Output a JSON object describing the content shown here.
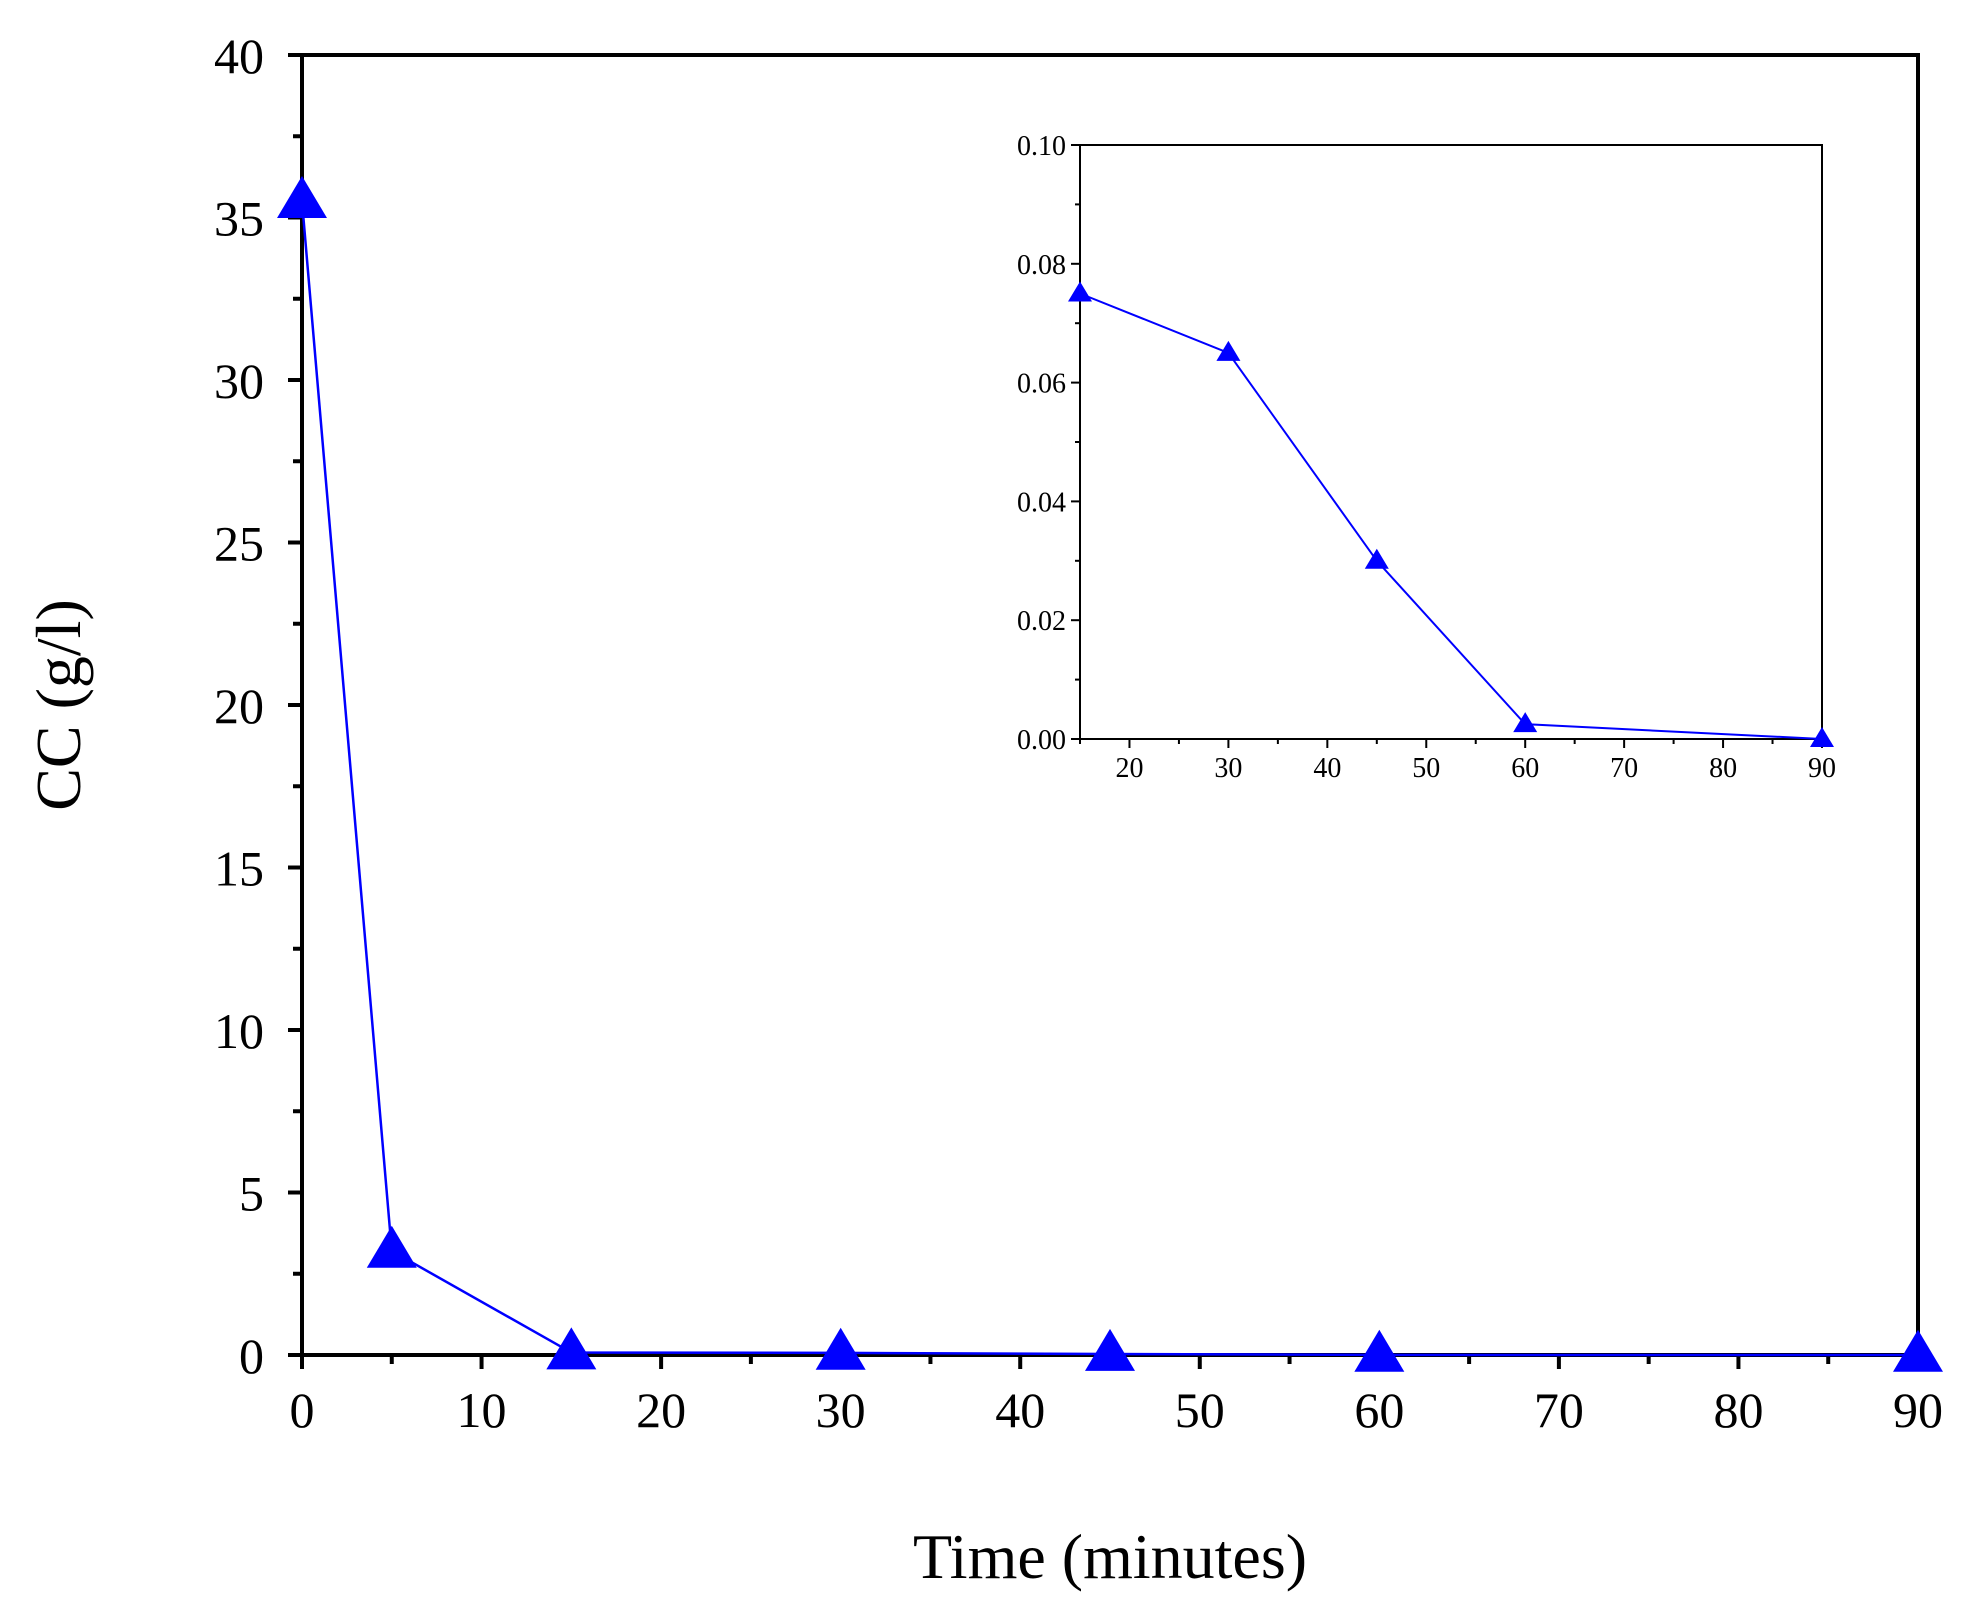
{
  "chart_data": [
    {
      "type": "line",
      "role": "main",
      "xlabel": "Time (minutes)",
      "ylabel": "CC (g/l)",
      "xlim": [
        0,
        90
      ],
      "ylim": [
        0,
        40
      ],
      "x_ticks": [
        0,
        10,
        20,
        30,
        40,
        50,
        60,
        70,
        80,
        90
      ],
      "x_tick_labels": [
        "0",
        "10",
        "20",
        "30",
        "40",
        "50",
        "60",
        "70",
        "80",
        "90"
      ],
      "y_ticks": [
        0,
        5,
        10,
        15,
        20,
        25,
        30,
        35,
        40
      ],
      "y_tick_labels": [
        "0",
        "5",
        "10",
        "15",
        "20",
        "25",
        "30",
        "35",
        "40"
      ],
      "grid": false,
      "series": [
        {
          "x": [
            0,
            5,
            15,
            30,
            45,
            60,
            90
          ],
          "y": [
            35.5,
            3.2,
            0.075,
            0.065,
            0.03,
            0.0025,
            0.0
          ],
          "marker": "triangle",
          "color": "#0000ff"
        }
      ]
    },
    {
      "type": "line",
      "role": "inset",
      "xlabel": "",
      "ylabel": "",
      "xlim": [
        15,
        90
      ],
      "ylim": [
        0,
        0.1
      ],
      "x_ticks": [
        20,
        30,
        40,
        50,
        60,
        70,
        80,
        90
      ],
      "x_tick_labels": [
        "20",
        "30",
        "40",
        "50",
        "60",
        "70",
        "80",
        "90"
      ],
      "y_ticks": [
        0,
        0.02,
        0.04,
        0.06,
        0.08,
        0.1
      ],
      "y_tick_labels": [
        "0.00",
        "0.02",
        "0.04",
        "0.06",
        "0.08",
        "0.10"
      ],
      "grid": false,
      "series": [
        {
          "x": [
            15,
            30,
            45,
            60,
            90
          ],
          "y": [
            0.075,
            0.065,
            0.03,
            0.0025,
            0.0
          ],
          "marker": "triangle",
          "color": "#0000ff"
        }
      ]
    }
  ]
}
